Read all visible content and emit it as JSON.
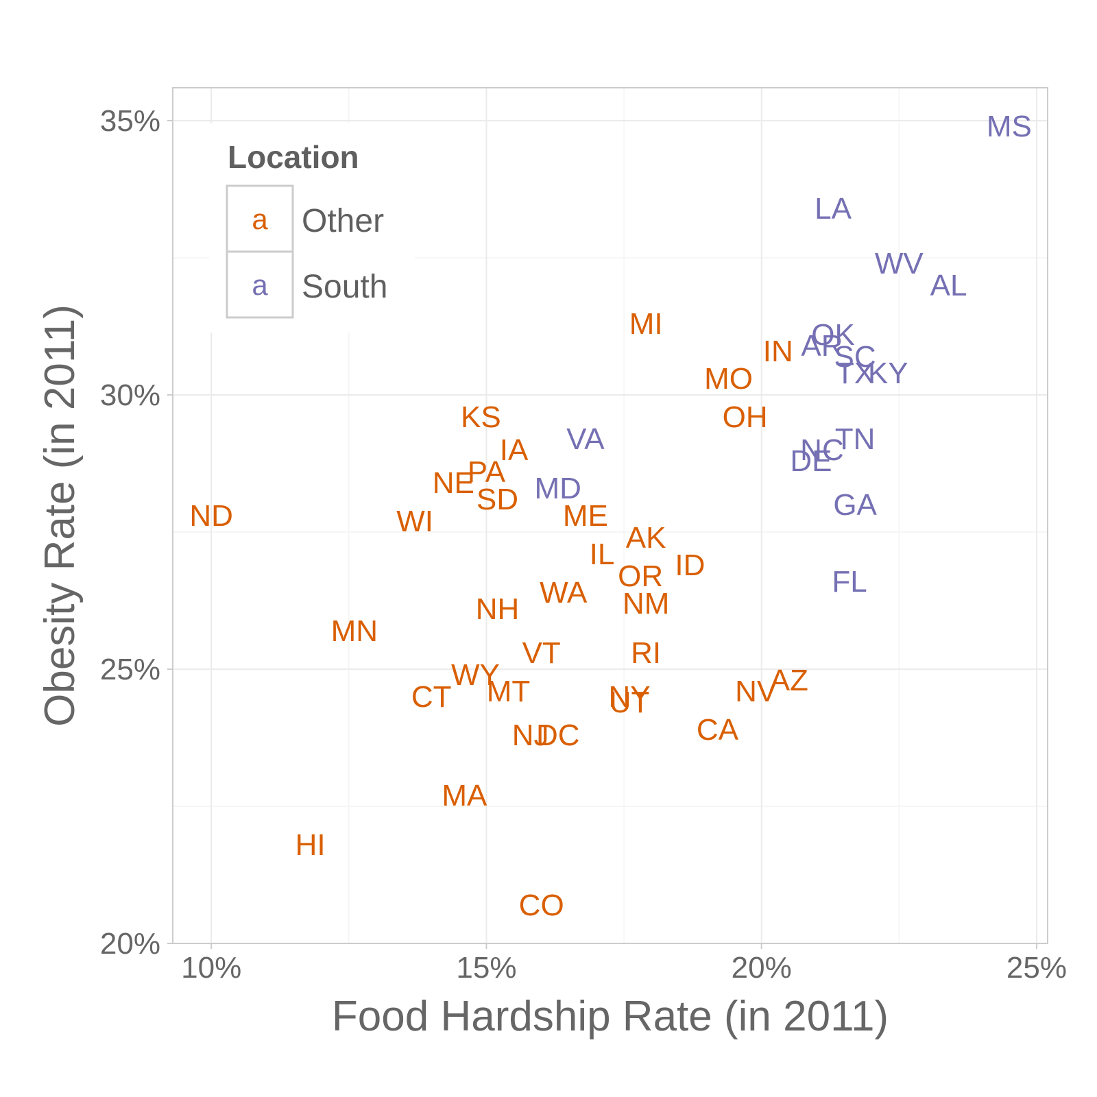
{
  "chart_data": {
    "type": "scatter",
    "title": "",
    "xlabel": "Food Hardship Rate (in 2011)",
    "ylabel": "Obesity Rate (in 2011)",
    "xlim": [
      9.3,
      25.2
    ],
    "ylim": [
      20.0,
      35.6
    ],
    "x_ticks": [
      10,
      15,
      20,
      25
    ],
    "x_tick_labels": [
      "10%",
      "15%",
      "20%",
      "25%"
    ],
    "y_ticks": [
      20,
      25,
      30,
      35
    ],
    "y_tick_labels": [
      "20%",
      "25%",
      "30%",
      "35%"
    ],
    "grid": true,
    "legend": {
      "title": "Location",
      "position": "top-left",
      "key_glyph": "a",
      "entries": [
        {
          "name": "Other",
          "color": "#D95F02"
        },
        {
          "name": "South",
          "color": "#7570B3"
        }
      ]
    },
    "series": [
      {
        "name": "Other",
        "color": "#D95F02",
        "points": [
          {
            "label": "ND",
            "x": 10.0,
            "y": 27.8
          },
          {
            "label": "HI",
            "x": 11.8,
            "y": 21.8
          },
          {
            "label": "MN",
            "x": 12.6,
            "y": 25.7
          },
          {
            "label": "WI",
            "x": 13.7,
            "y": 27.7
          },
          {
            "label": "NE",
            "x": 14.4,
            "y": 28.4
          },
          {
            "label": "KS",
            "x": 14.9,
            "y": 29.6
          },
          {
            "label": "PA",
            "x": 15.0,
            "y": 28.6
          },
          {
            "label": "IA",
            "x": 15.5,
            "y": 29.0
          },
          {
            "label": "SD",
            "x": 15.2,
            "y": 28.1
          },
          {
            "label": "CT",
            "x": 14.0,
            "y": 24.5
          },
          {
            "label": "WY",
            "x": 14.8,
            "y": 24.9
          },
          {
            "label": "MT",
            "x": 15.4,
            "y": 24.6
          },
          {
            "label": "MA",
            "x": 14.6,
            "y": 22.7
          },
          {
            "label": "NH",
            "x": 15.2,
            "y": 26.1
          },
          {
            "label": "VT",
            "x": 16.0,
            "y": 25.3
          },
          {
            "label": "NJ",
            "x": 15.8,
            "y": 23.8
          },
          {
            "label": "DC",
            "x": 16.3,
            "y": 23.8
          },
          {
            "label": "CO",
            "x": 16.0,
            "y": 20.7
          },
          {
            "label": "WA",
            "x": 16.4,
            "y": 26.4
          },
          {
            "label": "ME",
            "x": 16.8,
            "y": 27.8
          },
          {
            "label": "IL",
            "x": 17.1,
            "y": 27.1
          },
          {
            "label": "AK",
            "x": 17.9,
            "y": 27.4
          },
          {
            "label": "OR",
            "x": 17.8,
            "y": 26.7
          },
          {
            "label": "NM",
            "x": 17.9,
            "y": 26.2
          },
          {
            "label": "ID",
            "x": 18.7,
            "y": 26.9
          },
          {
            "label": "RI",
            "x": 17.9,
            "y": 25.3
          },
          {
            "label": "NY",
            "x": 17.6,
            "y": 24.5
          },
          {
            "label": "UT",
            "x": 17.6,
            "y": 24.4
          },
          {
            "label": "MI",
            "x": 17.9,
            "y": 31.3
          },
          {
            "label": "MO",
            "x": 19.4,
            "y": 30.3
          },
          {
            "label": "OH",
            "x": 19.7,
            "y": 29.6
          },
          {
            "label": "IN",
            "x": 20.3,
            "y": 30.8
          },
          {
            "label": "NV",
            "x": 19.9,
            "y": 24.6
          },
          {
            "label": "AZ",
            "x": 20.5,
            "y": 24.8
          },
          {
            "label": "CA",
            "x": 19.2,
            "y": 23.9
          }
        ]
      },
      {
        "name": "South",
        "color": "#7570B3",
        "points": [
          {
            "label": "MS",
            "x": 24.5,
            "y": 34.9
          },
          {
            "label": "LA",
            "x": 21.3,
            "y": 33.4
          },
          {
            "label": "WV",
            "x": 22.5,
            "y": 32.4
          },
          {
            "label": "AL",
            "x": 23.4,
            "y": 32.0
          },
          {
            "label": "OK",
            "x": 21.3,
            "y": 31.1
          },
          {
            "label": "AR",
            "x": 21.1,
            "y": 30.9
          },
          {
            "label": "SC",
            "x": 21.7,
            "y": 30.7
          },
          {
            "label": "TX",
            "x": 21.7,
            "y": 30.4
          },
          {
            "label": "KY",
            "x": 22.3,
            "y": 30.4
          },
          {
            "label": "VA",
            "x": 16.8,
            "y": 29.2
          },
          {
            "label": "MD",
            "x": 16.3,
            "y": 28.3
          },
          {
            "label": "NC",
            "x": 21.1,
            "y": 29.0
          },
          {
            "label": "TN",
            "x": 21.7,
            "y": 29.2
          },
          {
            "label": "DE",
            "x": 20.9,
            "y": 28.8
          },
          {
            "label": "GA",
            "x": 21.7,
            "y": 28.0
          },
          {
            "label": "FL",
            "x": 21.6,
            "y": 26.6
          }
        ]
      }
    ]
  }
}
